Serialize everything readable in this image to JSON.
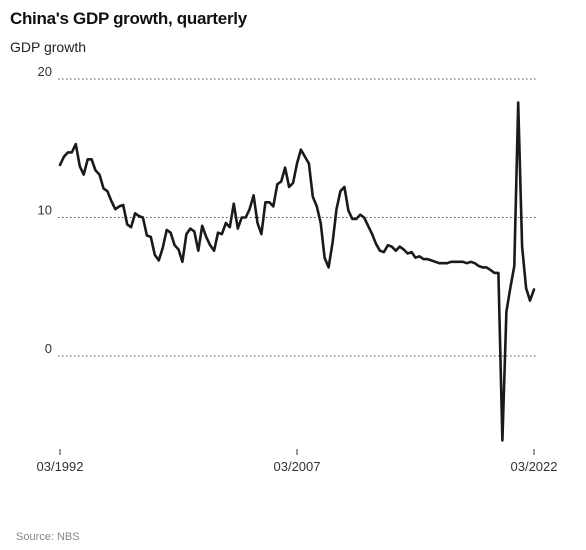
{
  "chart_data": {
    "type": "line",
    "title": "China's GDP growth, quarterly",
    "subtitle": "GDP growth",
    "source": "Source: NBS",
    "xlabel": "",
    "ylabel": "",
    "ylim": [
      -6.8,
      20
    ],
    "yticks": [
      0,
      10,
      20
    ],
    "ytick_labels": [
      "0",
      "10",
      "20"
    ],
    "xticks": [
      "03/1992",
      "03/2007",
      "03/2022"
    ],
    "grid": "horizontal dotted",
    "line_color": "#1a1a1a",
    "series": [
      {
        "x": [
          "1992Q1",
          "1992Q2",
          "1992Q3",
          "1992Q4",
          "1993Q1",
          "1993Q2",
          "1993Q3",
          "1993Q4",
          "1994Q1",
          "1994Q2",
          "1994Q3",
          "1994Q4",
          "1995Q1",
          "1995Q2",
          "1995Q3",
          "1995Q4",
          "1996Q1",
          "1996Q2",
          "1996Q3",
          "1996Q4",
          "1997Q1",
          "1997Q2",
          "1997Q3",
          "1997Q4",
          "1998Q1",
          "1998Q2",
          "1998Q3",
          "1998Q4",
          "1999Q1",
          "1999Q2",
          "1999Q3",
          "1999Q4",
          "2000Q1",
          "2000Q2",
          "2000Q3",
          "2000Q4",
          "2001Q1",
          "2001Q2",
          "2001Q3",
          "2001Q4",
          "2002Q1",
          "2002Q2",
          "2002Q3",
          "2002Q4",
          "2003Q1",
          "2003Q2",
          "2003Q3",
          "2003Q4",
          "2004Q1",
          "2004Q2",
          "2004Q3",
          "2004Q4",
          "2005Q1",
          "2005Q2",
          "2005Q3",
          "2005Q4",
          "2006Q1",
          "2006Q2",
          "2006Q3",
          "2006Q4",
          "2007Q1",
          "2007Q2",
          "2007Q3",
          "2007Q4",
          "2008Q1",
          "2008Q2",
          "2008Q3",
          "2008Q4",
          "2009Q1",
          "2009Q2",
          "2009Q3",
          "2009Q4",
          "2010Q1",
          "2010Q2",
          "2010Q3",
          "2010Q4",
          "2011Q1",
          "2011Q2",
          "2011Q3",
          "2011Q4",
          "2012Q1",
          "2012Q2",
          "2012Q3",
          "2012Q4",
          "2013Q1",
          "2013Q2",
          "2013Q3",
          "2013Q4",
          "2014Q1",
          "2014Q2",
          "2014Q3",
          "2014Q4",
          "2015Q1",
          "2015Q2",
          "2015Q3",
          "2015Q4",
          "2016Q1",
          "2016Q2",
          "2016Q3",
          "2016Q4",
          "2017Q1",
          "2017Q2",
          "2017Q3",
          "2017Q4",
          "2018Q1",
          "2018Q2",
          "2018Q3",
          "2018Q4",
          "2019Q1",
          "2019Q2",
          "2019Q3",
          "2019Q4",
          "2020Q1",
          "2020Q2",
          "2020Q3",
          "2020Q4",
          "2021Q1",
          "2021Q2",
          "2021Q3",
          "2021Q4",
          "2022Q1"
        ],
        "values": [
          13.8,
          14.4,
          14.7,
          14.7,
          15.3,
          13.7,
          13.1,
          14.2,
          14.2,
          13.4,
          13.1,
          12.1,
          11.9,
          11.2,
          10.6,
          10.8,
          10.9,
          9.5,
          9.3,
          10.3,
          10.1,
          10.0,
          8.7,
          8.6,
          7.3,
          6.9,
          7.8,
          9.1,
          8.9,
          8.0,
          7.7,
          6.8,
          8.8,
          9.2,
          9.0,
          7.6,
          9.4,
          8.6,
          8.0,
          7.6,
          8.9,
          8.8,
          9.6,
          9.3,
          11.0,
          9.2,
          10.0,
          10.0,
          10.6,
          11.6,
          9.6,
          8.8,
          11.1,
          11.1,
          10.8,
          12.4,
          12.6,
          13.6,
          12.2,
          12.5,
          13.9,
          14.9,
          14.4,
          13.9,
          11.5,
          10.8,
          9.6,
          7.1,
          6.4,
          8.2,
          10.6,
          11.9,
          12.2,
          10.5,
          9.9,
          9.9,
          10.2,
          10.0,
          9.4,
          8.8,
          8.1,
          7.6,
          7.5,
          8.0,
          7.9,
          7.6,
          7.9,
          7.7,
          7.4,
          7.5,
          7.1,
          7.2,
          7.0,
          7.0,
          6.9,
          6.8,
          6.7,
          6.7,
          6.7,
          6.8,
          6.8,
          6.8,
          6.8,
          6.7,
          6.8,
          6.7,
          6.5,
          6.4,
          6.4,
          6.2,
          6.0,
          6.0,
          -6.1,
          3.2,
          4.9,
          6.5,
          18.3,
          7.9,
          4.9,
          4.0,
          4.8
        ]
      }
    ]
  }
}
